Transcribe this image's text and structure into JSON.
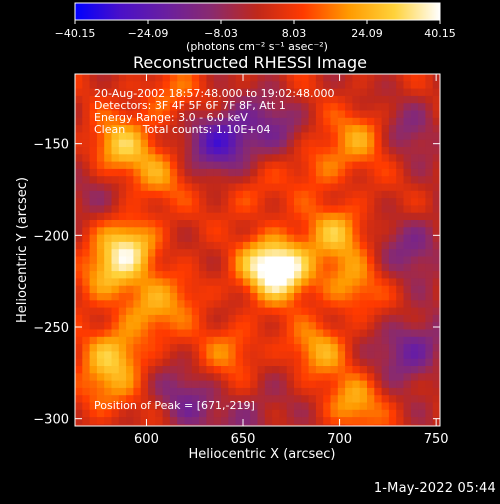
{
  "chart_data": {
    "type": "heatmap",
    "title": "Reconstructed RHESSI Image",
    "xlabel": "Heliocentric X (arcsec)",
    "ylabel": "Heliocentric Y (arcsec)",
    "xlim": [
      563,
      752
    ],
    "ylim": [
      -304,
      -112
    ],
    "xticks": [
      {
        "value": 600,
        "label": "600"
      },
      {
        "value": 650,
        "label": "650"
      },
      {
        "value": 700,
        "label": "700"
      },
      {
        "value": 750,
        "label": "750"
      }
    ],
    "yticks": [
      {
        "value": -150,
        "label": "−150"
      },
      {
        "value": -200,
        "label": "−200"
      },
      {
        "value": -250,
        "label": "−250"
      },
      {
        "value": -300,
        "label": "−300"
      }
    ],
    "colorbar": {
      "min": -40.15,
      "max": 40.15,
      "tick_labels": [
        "−40.15",
        "−24.09",
        "−8.03",
        "8.03",
        "24.09",
        "40.15"
      ],
      "unit": "(photons cm⁻² s⁻¹ asec⁻²)",
      "colors": [
        "#0000ff",
        "#4a10c8",
        "#6a1fa0",
        "#8a2a6e",
        "#c0281a",
        "#ff3a00",
        "#ff9a00",
        "#ffd23a",
        "#ffffff"
      ]
    },
    "annotations": [
      "20-Aug-2002 18:57:48.000 to 19:02:48.000",
      "Detectors: 3F 4F 5F 6F 7F 8F, Att 1",
      "Energy Range: 3.0 - 6.0 keV",
      "Clean     Total counts: 1.10E+04"
    ],
    "peak_label": "Position of Peak = [671,-219]",
    "peak": [
      671,
      -219
    ],
    "sources": [
      {
        "x": 671,
        "y": -219,
        "amp": 40
      },
      {
        "x": 658,
        "y": -213,
        "amp": 20
      },
      {
        "x": 700,
        "y": -198,
        "amp": 22
      },
      {
        "x": 690,
        "y": -162,
        "amp": 15
      },
      {
        "x": 712,
        "y": -145,
        "amp": 16
      },
      {
        "x": 705,
        "y": -228,
        "amp": 16
      },
      {
        "x": 690,
        "y": -262,
        "amp": 18
      },
      {
        "x": 708,
        "y": -292,
        "amp": 18
      },
      {
        "x": 645,
        "y": -262,
        "amp": 15
      },
      {
        "x": 650,
        "y": -180,
        "amp": 10
      },
      {
        "x": 592,
        "y": -205,
        "amp": 28
      },
      {
        "x": 578,
        "y": -222,
        "amp": 22
      },
      {
        "x": 585,
        "y": -265,
        "amp": 22
      },
      {
        "x": 600,
        "y": -243,
        "amp": 16
      },
      {
        "x": 585,
        "y": -152,
        "amp": 24
      },
      {
        "x": 605,
        "y": -168,
        "amp": 14
      },
      {
        "x": 610,
        "y": -125,
        "amp": 14
      },
      {
        "x": 575,
        "y": -285,
        "amp": 14
      },
      {
        "x": 620,
        "y": -230,
        "amp": 12
      }
    ],
    "sinks": [
      {
        "x": 640,
        "y": -148,
        "amp": 30
      },
      {
        "x": 665,
        "y": -140,
        "amp": 12
      },
      {
        "x": 738,
        "y": -262,
        "amp": 22
      },
      {
        "x": 740,
        "y": -205,
        "amp": 15
      },
      {
        "x": 737,
        "y": -140,
        "amp": 12
      },
      {
        "x": 620,
        "y": -290,
        "amp": 14
      },
      {
        "x": 655,
        "y": -300,
        "amp": 12
      },
      {
        "x": 568,
        "y": -180,
        "amp": 10
      },
      {
        "x": 645,
        "y": -210,
        "amp": 6
      }
    ],
    "background": 2
  },
  "footer": {
    "timestamp": "1-May-2022 05:44"
  }
}
